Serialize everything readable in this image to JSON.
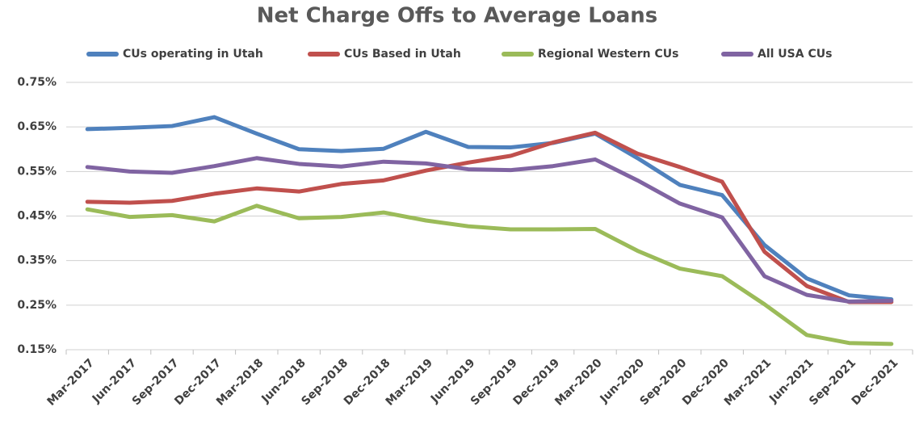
{
  "chart_data": {
    "type": "line",
    "title": "Net Charge Offs to Average Loans",
    "categories": [
      "Mar-2017",
      "Jun-2017",
      "Sep-2017",
      "Dec-2017",
      "Mar-2018",
      "Jun-2018",
      "Sep-2018",
      "Dec-2018",
      "Mar-2019",
      "Jun-2019",
      "Sep-2019",
      "Dec-2019",
      "Mar-2020",
      "Jun-2020",
      "Sep-2020",
      "Dec-2020",
      "Mar-2021",
      "Jun-2021",
      "Sep-2021",
      "Dec-2021"
    ],
    "series": [
      {
        "name": "CUs operating in Utah",
        "color": "#4f81bd",
        "values": [
          0.645,
          0.648,
          0.652,
          0.672,
          0.635,
          0.6,
          0.596,
          0.601,
          0.639,
          0.605,
          0.604,
          0.614,
          0.635,
          0.58,
          0.52,
          0.497,
          0.385,
          0.31,
          0.272,
          0.263
        ]
      },
      {
        "name": "CUs Based in Utah",
        "color": "#c0504d",
        "values": [
          0.482,
          0.48,
          0.484,
          0.5,
          0.512,
          0.505,
          0.522,
          0.53,
          0.552,
          0.57,
          0.585,
          0.615,
          0.637,
          0.59,
          0.56,
          0.527,
          0.37,
          0.293,
          0.257,
          0.257
        ]
      },
      {
        "name": "Regional Western CUs",
        "color": "#9bbb59",
        "values": [
          0.465,
          0.448,
          0.452,
          0.438,
          0.473,
          0.445,
          0.448,
          0.458,
          0.44,
          0.427,
          0.42,
          0.42,
          0.421,
          0.372,
          0.332,
          0.315,
          0.252,
          0.183,
          0.165,
          0.163
        ]
      },
      {
        "name": "All USA CUs",
        "color": "#8064a2",
        "values": [
          0.56,
          0.55,
          0.547,
          0.562,
          0.58,
          0.567,
          0.561,
          0.572,
          0.568,
          0.555,
          0.553,
          0.562,
          0.577,
          0.53,
          0.478,
          0.447,
          0.315,
          0.273,
          0.258,
          0.26
        ]
      }
    ],
    "ylim": [
      0.15,
      0.75
    ],
    "yticks": [
      {
        "value": 0.15,
        "label": "0.15%"
      },
      {
        "value": 0.25,
        "label": "0.25%"
      },
      {
        "value": 0.35,
        "label": "0.35%"
      },
      {
        "value": 0.45,
        "label": "0.45%"
      },
      {
        "value": 0.55,
        "label": "0.55%"
      },
      {
        "value": 0.65,
        "label": "0.65%"
      },
      {
        "value": 0.75,
        "label": "0.75%"
      }
    ],
    "grid": true,
    "legend": "top"
  }
}
